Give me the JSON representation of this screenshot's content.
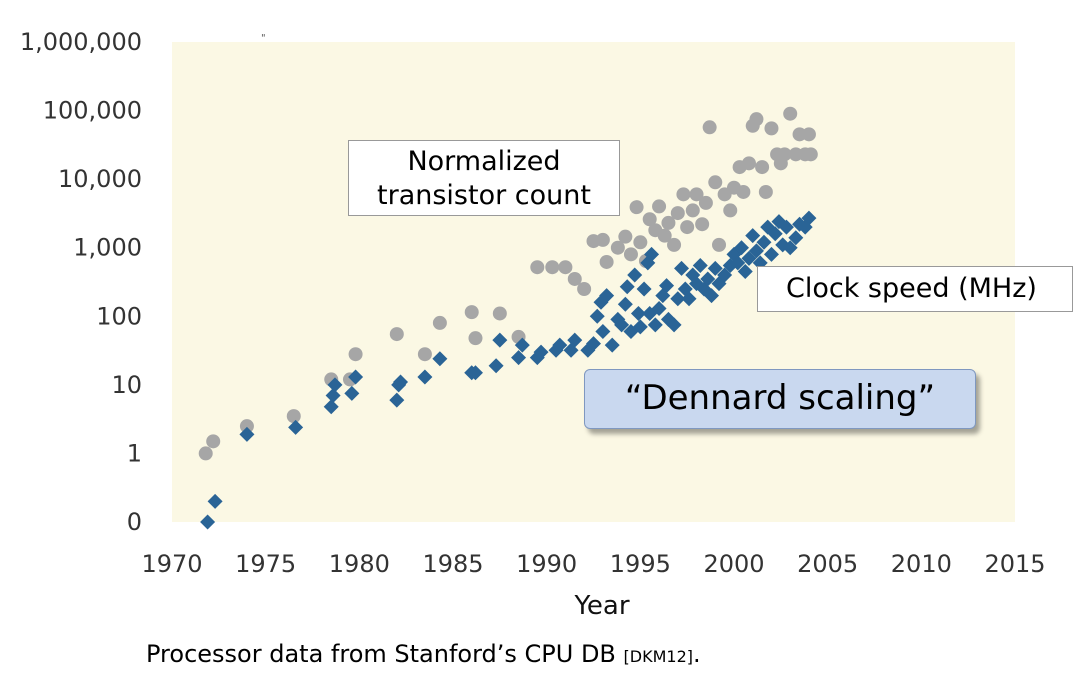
{
  "chart_data": {
    "type": "scatter",
    "title": "",
    "xlabel": "Year",
    "ylabel": "",
    "xlim": [
      1970,
      2015
    ],
    "ylim": [
      0.1,
      1000000
    ],
    "y_scale": "log",
    "grid": false,
    "plot_background": "#fbf8e4",
    "x_ticks": [
      "1970",
      "1975",
      "1980",
      "1985",
      "1990",
      "1995",
      "2000",
      "2005",
      "2010",
      "2015"
    ],
    "y_ticks": [
      {
        "value": 1000000,
        "label": "1,000,000"
      },
      {
        "value": 100000,
        "label": "100,000"
      },
      {
        "value": 10000,
        "label": "10,000"
      },
      {
        "value": 1000,
        "label": "1,000"
      },
      {
        "value": 100,
        "label": "100"
      },
      {
        "value": 10,
        "label": "10"
      },
      {
        "value": 1,
        "label": "1"
      },
      {
        "value": 0.1,
        "label": "0"
      }
    ],
    "series": [
      {
        "marker": "circle",
        "color": "#a6a6a6",
        "points": [
          [
            1971.8,
            1
          ],
          [
            1972.2,
            1.5
          ],
          [
            1974,
            2.5
          ],
          [
            1976.5,
            3.5
          ],
          [
            1978.5,
            12
          ],
          [
            1979.5,
            12
          ],
          [
            1979.8,
            28
          ],
          [
            1982,
            55
          ],
          [
            1983.5,
            28
          ],
          [
            1984.3,
            80
          ],
          [
            1986,
            115
          ],
          [
            1986.2,
            48
          ],
          [
            1987.5,
            110
          ],
          [
            1988.5,
            50
          ],
          [
            1989.5,
            520
          ],
          [
            1990.3,
            520
          ],
          [
            1991,
            520
          ],
          [
            1991.5,
            350
          ],
          [
            1992,
            250
          ],
          [
            1992.5,
            1250
          ],
          [
            1993,
            1300
          ],
          [
            1993.2,
            620
          ],
          [
            1993.8,
            1000
          ],
          [
            1994.2,
            1450
          ],
          [
            1994.5,
            800
          ],
          [
            1994.8,
            3900
          ],
          [
            1995,
            1200
          ],
          [
            1995.3,
            640
          ],
          [
            1995.5,
            2600
          ],
          [
            1995.8,
            1800
          ],
          [
            1996,
            4000
          ],
          [
            1996.3,
            1500
          ],
          [
            1996.5,
            2300
          ],
          [
            1996.8,
            1100
          ],
          [
            1997,
            3200
          ],
          [
            1997.3,
            6000
          ],
          [
            1997.5,
            2000
          ],
          [
            1997.8,
            3500
          ],
          [
            1998,
            6000
          ],
          [
            1998.3,
            2200
          ],
          [
            1998.5,
            4500
          ],
          [
            1998.7,
            57000
          ],
          [
            1999,
            9000
          ],
          [
            1999.2,
            1100
          ],
          [
            1999.5,
            6000
          ],
          [
            1999.8,
            3500
          ],
          [
            2000,
            7500
          ],
          [
            2000.3,
            15000
          ],
          [
            2000.5,
            6500
          ],
          [
            2000.8,
            17000
          ],
          [
            2001,
            60000
          ],
          [
            2001.2,
            75000
          ],
          [
            2001.5,
            15000
          ],
          [
            2001.7,
            6500
          ],
          [
            2002,
            55000
          ],
          [
            2002.3,
            23000
          ],
          [
            2002.5,
            17000
          ],
          [
            2002.7,
            23000
          ],
          [
            2003,
            90000
          ],
          [
            2003.3,
            23000
          ],
          [
            2003.5,
            45000
          ],
          [
            2003.8,
            23000
          ],
          [
            2004,
            45000
          ],
          [
            2004.1,
            23000
          ]
        ]
      },
      {
        "marker": "diamond",
        "color": "#2a6496",
        "points": [
          [
            1971.9,
            0.1
          ],
          [
            1972.3,
            0.2
          ],
          [
            1974,
            1.9
          ],
          [
            1976.6,
            2.4
          ],
          [
            1978.5,
            4.8
          ],
          [
            1978.6,
            7
          ],
          [
            1978.7,
            10
          ],
          [
            1979.6,
            7.5
          ],
          [
            1979.8,
            13
          ],
          [
            1982,
            6
          ],
          [
            1982.1,
            10
          ],
          [
            1982.2,
            11
          ],
          [
            1983.5,
            13
          ],
          [
            1984.3,
            24
          ],
          [
            1986,
            15
          ],
          [
            1986.2,
            15
          ],
          [
            1987.3,
            19
          ],
          [
            1987.5,
            45
          ],
          [
            1988.5,
            25
          ],
          [
            1988.7,
            38
          ],
          [
            1989.5,
            25
          ],
          [
            1989.7,
            30
          ],
          [
            1990.5,
            32
          ],
          [
            1990.7,
            38
          ],
          [
            1991.3,
            32
          ],
          [
            1991.5,
            45
          ],
          [
            1992.2,
            32
          ],
          [
            1992.5,
            40
          ],
          [
            1992.7,
            100
          ],
          [
            1992.9,
            160
          ],
          [
            1993,
            60
          ],
          [
            1993.2,
            200
          ],
          [
            1993.5,
            38
          ],
          [
            1993.8,
            90
          ],
          [
            1994,
            75
          ],
          [
            1994.2,
            150
          ],
          [
            1994.3,
            270
          ],
          [
            1994.5,
            60
          ],
          [
            1994.7,
            400
          ],
          [
            1994.9,
            110
          ],
          [
            1995,
            70
          ],
          [
            1995.2,
            250
          ],
          [
            1995.4,
            600
          ],
          [
            1995.5,
            110
          ],
          [
            1995.6,
            800
          ],
          [
            1995.8,
            75
          ],
          [
            1996,
            130
          ],
          [
            1996.2,
            200
          ],
          [
            1996.4,
            280
          ],
          [
            1996.5,
            90
          ],
          [
            1996.8,
            75
          ],
          [
            1997,
            180
          ],
          [
            1997.2,
            500
          ],
          [
            1997.4,
            250
          ],
          [
            1997.6,
            180
          ],
          [
            1997.8,
            400
          ],
          [
            1998,
            300
          ],
          [
            1998.2,
            550
          ],
          [
            1998.4,
            250
          ],
          [
            1998.6,
            350
          ],
          [
            1998.8,
            200
          ],
          [
            1999,
            500
          ],
          [
            1999.2,
            300
          ],
          [
            1999.5,
            400
          ],
          [
            1999.8,
            550
          ],
          [
            2000,
            800
          ],
          [
            2000.2,
            600
          ],
          [
            2000.4,
            1000
          ],
          [
            2000.6,
            450
          ],
          [
            2000.8,
            700
          ],
          [
            2001,
            1500
          ],
          [
            2001.2,
            900
          ],
          [
            2001.4,
            600
          ],
          [
            2001.6,
            1200
          ],
          [
            2001.8,
            2000
          ],
          [
            2002,
            800
          ],
          [
            2002.2,
            1600
          ],
          [
            2002.4,
            2400
          ],
          [
            2002.6,
            1100
          ],
          [
            2002.8,
            2000
          ],
          [
            2003,
            1000
          ],
          [
            2003.3,
            1400
          ],
          [
            2003.5,
            2200
          ],
          [
            2003.8,
            2000
          ],
          [
            2004,
            2700
          ]
        ]
      }
    ],
    "annotations": {
      "transistor_line1": "Normalized",
      "transistor_line2": "transistor count",
      "clock": "Clock speed (MHz)",
      "dennard": "“Dennard scaling”"
    }
  },
  "caption": {
    "text": "Processor data from Stanford’s CPU DB ",
    "ref": "[DKM12]",
    "end": "."
  },
  "stray_mark": "\""
}
